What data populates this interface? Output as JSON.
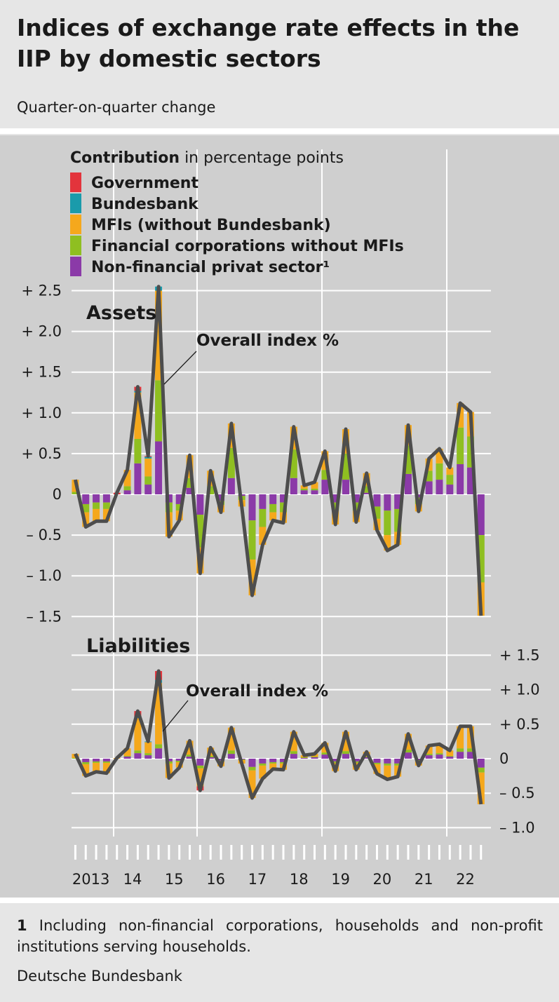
{
  "header": {
    "title": "Indices of exchange rate effects in the IIP by domestic sectors",
    "subtitle": "Quarter-on-quarter change"
  },
  "footer": {
    "footnote_num": "1",
    "footnote_text": "Including non-financial corporations, households and non-profit institutions serving households.",
    "source": "Deutsche Bundesbank"
  },
  "colors": {
    "Government": "#e3343c",
    "Bundesbank": "#1a9bab",
    "MFIs": "#f5a81c",
    "Financial": "#8fbf21",
    "NonFin": "#8b3aa8",
    "line": "#4d4d4d"
  },
  "chart_data": {
    "type": "bar",
    "stacked": true,
    "legend": {
      "title_bold": "Contribution",
      "title_rest": " in percentage points",
      "entries": [
        "Government",
        "Bundesbank",
        "MFIs (without Bundesbank)",
        "Financial corporations without MFIs",
        "Non-financial privat sector¹"
      ]
    },
    "series_keys": [
      "Government",
      "Bundesbank",
      "MFIs",
      "Financial",
      "NonFin"
    ],
    "x_labels": [
      "2013",
      "14",
      "15",
      "16",
      "17",
      "18",
      "19",
      "20",
      "21",
      "22"
    ],
    "quarters_from": "2013 Q1",
    "panels": [
      {
        "name": "Assets",
        "annotation": "Overall index %",
        "ylim": [
          -1.5,
          2.5
        ],
        "yticks": [
          2.5,
          2.0,
          1.5,
          1.0,
          0.5,
          0,
          -0.5,
          -1.0,
          -1.5
        ],
        "ytick_labels": [
          "+ 2.5",
          "+ 2.0",
          "+ 1.5",
          "+ 1.0",
          "+ 0.5",
          "0",
          "– 0.5",
          "– 1.0",
          "– 1.5"
        ],
        "axis_side": "left",
        "overall": [
          0.18,
          -0.4,
          -0.33,
          -0.33,
          0.02,
          0.3,
          1.32,
          0.47,
          2.55,
          -0.52,
          -0.32,
          0.48,
          -0.97,
          0.29,
          -0.22,
          0.87,
          -0.15,
          -1.24,
          -0.62,
          -0.32,
          -0.35,
          0.83,
          0.11,
          0.15,
          0.53,
          -0.37,
          0.8,
          -0.34,
          0.26,
          -0.44,
          -0.69,
          -0.62,
          0.85,
          -0.21,
          0.44,
          0.56,
          0.33,
          1.12,
          1.01,
          -1.49
        ],
        "NonFin": [
          0.0,
          -0.12,
          -0.1,
          -0.1,
          0.0,
          0.05,
          0.38,
          0.12,
          0.65,
          -0.1,
          -0.12,
          0.08,
          -0.25,
          0.0,
          -0.08,
          0.2,
          -0.02,
          -0.32,
          -0.18,
          -0.12,
          -0.1,
          0.2,
          0.05,
          0.05,
          0.18,
          -0.1,
          0.18,
          -0.1,
          0.02,
          -0.15,
          -0.2,
          -0.18,
          0.25,
          -0.04,
          0.16,
          0.18,
          0.12,
          0.37,
          0.33,
          -0.5
        ],
        "Financial": [
          0.03,
          -0.1,
          -0.08,
          -0.08,
          0.0,
          0.05,
          0.3,
          0.1,
          0.75,
          -0.12,
          -0.08,
          0.12,
          -0.4,
          0.1,
          -0.05,
          0.37,
          -0.05,
          -0.48,
          -0.22,
          -0.1,
          -0.12,
          0.35,
          0.02,
          0.02,
          0.12,
          -0.1,
          0.32,
          -0.1,
          0.08,
          -0.15,
          -0.3,
          -0.28,
          0.35,
          -0.08,
          0.13,
          0.2,
          0.12,
          0.45,
          0.38,
          -0.58
        ],
        "MFIs": [
          0.15,
          -0.18,
          -0.15,
          -0.15,
          0.0,
          0.2,
          0.57,
          0.22,
          1.1,
          -0.3,
          -0.12,
          0.28,
          -0.32,
          0.19,
          -0.09,
          0.3,
          -0.08,
          -0.44,
          -0.22,
          -0.1,
          -0.13,
          0.28,
          0.04,
          0.08,
          0.23,
          -0.17,
          0.3,
          -0.14,
          0.16,
          -0.14,
          -0.19,
          -0.16,
          0.25,
          -0.09,
          0.15,
          0.18,
          0.09,
          0.3,
          0.3,
          -0.41
        ],
        "Bundesbank": [
          0.0,
          0.0,
          0.0,
          0.0,
          0.0,
          0.0,
          0.02,
          0.02,
          0.05,
          0.0,
          0.0,
          0.0,
          0.0,
          0.0,
          0.0,
          0.0,
          0.0,
          0.0,
          0.0,
          0.0,
          0.0,
          0.0,
          0.0,
          0.0,
          0.0,
          0.0,
          0.0,
          0.0,
          0.0,
          0.0,
          0.0,
          0.0,
          0.0,
          0.0,
          0.0,
          0.0,
          0.0,
          0.0,
          0.0,
          0.0
        ],
        "Government": [
          0.0,
          0.0,
          0.0,
          0.0,
          0.02,
          0.0,
          0.05,
          0.01,
          0.0,
          0.0,
          0.0,
          0.0,
          0.0,
          0.0,
          0.0,
          0.0,
          0.0,
          0.0,
          0.0,
          0.0,
          0.0,
          0.0,
          0.0,
          0.0,
          0.0,
          0.0,
          0.0,
          0.0,
          0.0,
          0.0,
          0.0,
          0.0,
          0.0,
          0.0,
          0.0,
          0.0,
          0.0,
          0.0,
          0.0,
          0.0
        ]
      },
      {
        "name": "Liabilities",
        "annotation": "Overall index %",
        "ylim": [
          -1.0,
          1.5
        ],
        "yticks": [
          1.5,
          1.0,
          0.5,
          0,
          -0.5,
          -1.0
        ],
        "ytick_labels": [
          "+ 1.5",
          "+ 1.0",
          "+ 0.5",
          "0",
          "– 0.5",
          "– 1.0"
        ],
        "axis_side": "right",
        "overall": [
          0.07,
          -0.25,
          -0.19,
          -0.21,
          0.01,
          0.15,
          0.69,
          0.25,
          1.27,
          -0.28,
          -0.13,
          0.26,
          -0.46,
          0.16,
          -0.11,
          0.45,
          -0.07,
          -0.57,
          -0.29,
          -0.15,
          -0.16,
          0.39,
          0.05,
          0.07,
          0.23,
          -0.18,
          0.39,
          -0.16,
          0.1,
          -0.22,
          -0.3,
          -0.26,
          0.36,
          -0.1,
          0.19,
          0.21,
          0.12,
          0.47,
          0.47,
          -0.66
        ],
        "NonFin": [
          0.0,
          -0.05,
          -0.04,
          -0.04,
          0.0,
          0.03,
          0.08,
          0.05,
          0.15,
          -0.04,
          -0.03,
          0.03,
          -0.1,
          0.02,
          -0.03,
          0.07,
          -0.01,
          -0.12,
          -0.07,
          -0.05,
          -0.05,
          0.07,
          0.01,
          0.02,
          0.06,
          -0.04,
          0.07,
          -0.04,
          0.02,
          -0.06,
          -0.07,
          -0.07,
          0.09,
          -0.02,
          0.05,
          0.06,
          0.03,
          0.1,
          0.1,
          -0.13
        ],
        "Financial": [
          0.01,
          -0.03,
          -0.02,
          -0.02,
          0.0,
          0.01,
          0.04,
          0.03,
          0.06,
          -0.03,
          -0.02,
          0.03,
          -0.04,
          0.02,
          -0.01,
          0.05,
          -0.01,
          -0.05,
          -0.03,
          -0.02,
          -0.02,
          0.04,
          0.01,
          0.01,
          0.03,
          -0.02,
          0.04,
          -0.02,
          0.01,
          -0.02,
          -0.03,
          -0.03,
          0.04,
          -0.01,
          0.02,
          0.02,
          0.01,
          0.05,
          0.05,
          -0.07
        ],
        "MFIs": [
          0.06,
          -0.17,
          -0.13,
          -0.15,
          0.01,
          0.11,
          0.47,
          0.16,
          0.89,
          -0.21,
          -0.08,
          0.2,
          -0.26,
          0.12,
          -0.07,
          0.33,
          -0.05,
          -0.4,
          -0.19,
          -0.08,
          -0.09,
          0.28,
          0.03,
          0.04,
          0.14,
          -0.12,
          0.28,
          -0.1,
          0.07,
          -0.14,
          -0.2,
          -0.16,
          0.23,
          -0.07,
          0.12,
          0.13,
          0.08,
          0.32,
          0.32,
          -0.46
        ],
        "Bundesbank": [
          0.0,
          0.0,
          0.0,
          0.0,
          0.0,
          0.0,
          0.02,
          0.01,
          0.04,
          0.0,
          0.0,
          0.0,
          0.0,
          0.0,
          0.0,
          0.0,
          0.0,
          0.0,
          0.0,
          0.0,
          0.0,
          0.0,
          0.0,
          0.0,
          0.0,
          0.0,
          0.0,
          0.0,
          0.0,
          0.0,
          0.0,
          0.0,
          0.0,
          0.0,
          0.0,
          0.0,
          0.0,
          0.0,
          0.0,
          0.0
        ],
        "Government": [
          0.0,
          0.0,
          0.0,
          0.0,
          0.0,
          0.0,
          0.08,
          0.0,
          0.13,
          0.0,
          0.0,
          0.0,
          -0.06,
          0.0,
          0.0,
          0.0,
          0.0,
          0.0,
          0.0,
          0.0,
          0.0,
          0.0,
          0.0,
          0.0,
          0.0,
          0.0,
          0.0,
          0.0,
          0.0,
          0.0,
          0.0,
          0.0,
          0.0,
          0.0,
          0.0,
          0.0,
          0.0,
          0.0,
          0.0,
          0.0
        ]
      }
    ]
  }
}
